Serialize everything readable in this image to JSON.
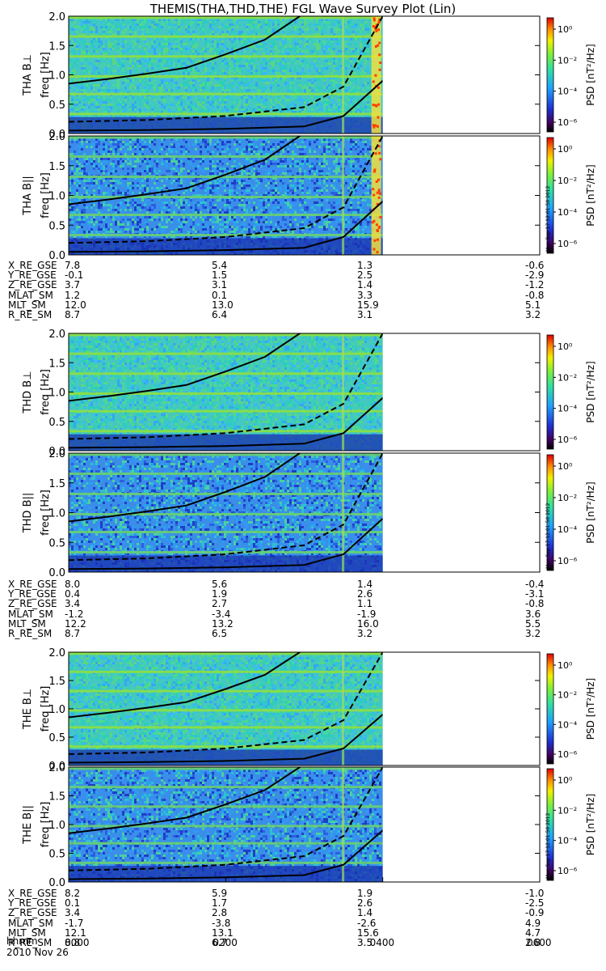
{
  "title": "THEMIS(THA,THD,THE) FGL Wave Survey Plot (Lin)",
  "footer": {
    "time_label": "hhmm",
    "date": "2010 Nov 26"
  },
  "time_ticks": [
    "0000",
    "0200",
    "0400",
    "0600"
  ],
  "colorbar": {
    "label": "PSD [nT²/Hz]",
    "ticks": [
      "10⁰",
      "10⁻²",
      "10⁻⁴",
      "10⁻⁶"
    ],
    "stamp": "Mon Sep 17 12:01:50 2012"
  },
  "chart_data": {
    "type": "heatmap",
    "x_axis": {
      "label": "hhmm",
      "range": [
        "0000",
        "0600"
      ],
      "ticks": [
        "0000",
        "0200",
        "0400",
        "0600"
      ]
    },
    "colorscale": "rainbow log PSD nT²/Hz, 1e-7 to 1e1",
    "panels": [
      {
        "id": "tha-perp",
        "ylabel": "THA B⊥",
        "yunits": "freq [Hz]",
        "ylim": [
          0,
          2.0
        ],
        "yticks": [
          "0.0",
          "0.5",
          "1.0",
          "1.5",
          "2.0"
        ],
        "data_end": "0400"
      },
      {
        "id": "tha-par",
        "ylabel": "THA B||",
        "yunits": "freq [Hz]",
        "ylim": [
          0,
          2.0
        ],
        "yticks": [
          "0.0",
          "0.5",
          "1.0",
          "1.5",
          "2.0"
        ],
        "data_end": "0400"
      },
      {
        "id": "thd-perp",
        "ylabel": "THD B⊥",
        "yunits": "freq [Hz]",
        "ylim": [
          0,
          2.0
        ],
        "yticks": [
          "0.0",
          "0.5",
          "1.0",
          "1.5",
          "2.0"
        ],
        "data_end": "0400"
      },
      {
        "id": "thd-par",
        "ylabel": "THD B||",
        "yunits": "freq [Hz]",
        "ylim": [
          0,
          2.0
        ],
        "yticks": [
          "0.0",
          "0.5",
          "1.0",
          "1.5",
          "2.0"
        ],
        "data_end": "0400"
      },
      {
        "id": "the-perp",
        "ylabel": "THE B⊥",
        "yunits": "freq [Hz]",
        "ylim": [
          0,
          2.0
        ],
        "yticks": [
          "0.0",
          "0.5",
          "1.0",
          "1.5",
          "2.0"
        ],
        "data_end": "0400"
      },
      {
        "id": "the-par",
        "ylabel": "THE B||",
        "yunits": "freq [Hz]",
        "ylim": [
          0,
          2.0
        ],
        "yticks": [
          "0.0",
          "0.5",
          "1.0",
          "1.5",
          "2.0"
        ],
        "data_end": "0400"
      }
    ],
    "overlay_lines": [
      {
        "style": "solid",
        "note": "gyrofrequency",
        "x_hours": [
          0,
          0.5,
          1,
          1.5,
          2,
          2.5,
          3
        ],
        "y_hz": [
          0.85,
          0.93,
          1.02,
          1.12,
          1.35,
          1.6,
          2.05
        ]
      },
      {
        "style": "dashed",
        "note": "gyrofrequency / 4",
        "x_hours": [
          0,
          1,
          2,
          3,
          3.5,
          4
        ],
        "y_hz": [
          0.2,
          0.23,
          0.3,
          0.45,
          0.8,
          2.0
        ]
      },
      {
        "style": "solid",
        "note": "gyrofrequency / 16",
        "x_hours": [
          0,
          1,
          2,
          3,
          3.5,
          4
        ],
        "y_hz": [
          0.05,
          0.06,
          0.08,
          0.12,
          0.3,
          0.9
        ]
      }
    ],
    "ephemeris": [
      {
        "probe": "THA",
        "rows": [
          {
            "label": "X_RE_GSE",
            "values": [
              "7.8",
              "5.4",
              "1.3",
              "-0.6"
            ]
          },
          {
            "label": "Y_RE_GSE",
            "values": [
              "-0.1",
              "1.5",
              "2.5",
              "-2.9"
            ]
          },
          {
            "label": "Z_RE_GSE",
            "values": [
              "3.7",
              "3.1",
              "1.4",
              "-1.2"
            ]
          },
          {
            "label": "MLAT_SM",
            "values": [
              "1.2",
              "0.1",
              "3.3",
              "-0.8"
            ]
          },
          {
            "label": "MLT_SM",
            "values": [
              "12.0",
              "13.0",
              "15.9",
              "5.1"
            ]
          },
          {
            "label": "R_RE_SM",
            "values": [
              "8.7",
              "6.4",
              "3.1",
              "3.2"
            ]
          }
        ]
      },
      {
        "probe": "THD",
        "rows": [
          {
            "label": "X_RE_GSE",
            "values": [
              "8.0",
              "5.6",
              "1.4",
              "-0.4"
            ]
          },
          {
            "label": "Y_RE_GSE",
            "values": [
              "0.4",
              "1.9",
              "2.6",
              "-3.1"
            ]
          },
          {
            "label": "Z_RE_GSE",
            "values": [
              "3.4",
              "2.7",
              "1.1",
              "-0.8"
            ]
          },
          {
            "label": "MLAT_SM",
            "values": [
              "-1.2",
              "-3.4",
              "-1.9",
              "3.6"
            ]
          },
          {
            "label": "MLT_SM",
            "values": [
              "12.2",
              "13.2",
              "16.0",
              "5.5"
            ]
          },
          {
            "label": "R_RE_SM",
            "values": [
              "8.7",
              "6.5",
              "3.2",
              "3.2"
            ]
          }
        ]
      },
      {
        "probe": "THE",
        "rows": [
          {
            "label": "X_RE_GSE",
            "values": [
              "8.2",
              "5.9",
              "1.9",
              "-1.0"
            ]
          },
          {
            "label": "Y_RE_GSE",
            "values": [
              "0.1",
              "1.7",
              "2.6",
              "-2.5"
            ]
          },
          {
            "label": "Z_RE_GSE",
            "values": [
              "3.4",
              "2.8",
              "1.4",
              "-0.9"
            ]
          },
          {
            "label": "MLAT_SM",
            "values": [
              "-1.7",
              "-3.8",
              "-2.6",
              "4.9"
            ]
          },
          {
            "label": "MLT_SM",
            "values": [
              "12.1",
              "13.1",
              "15.6",
              "4.7"
            ]
          },
          {
            "label": "R_RE_SM",
            "values": [
              "8.8",
              "6.7",
              "3.5",
              "2.8"
            ]
          }
        ]
      }
    ]
  }
}
